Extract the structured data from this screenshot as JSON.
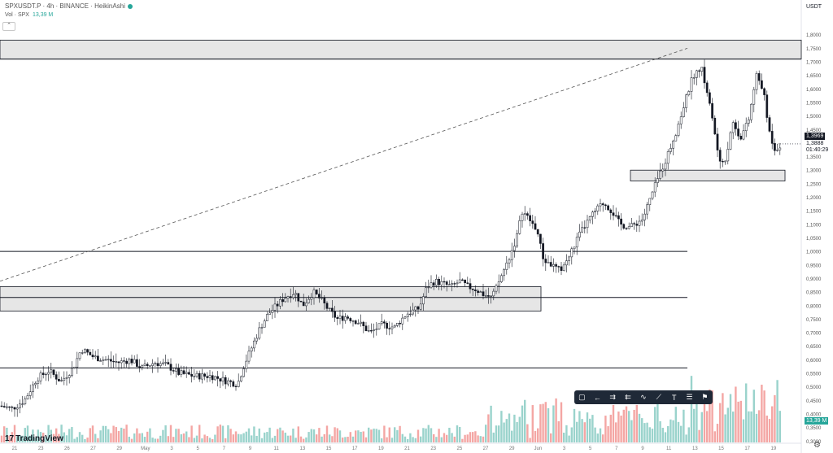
{
  "header": {
    "symbol_line": "SPXUSDT.P · 4h · BINANCE · HeikinAshi",
    "volume_label": "Vol · SPX",
    "volume_value": "13,39 M"
  },
  "axis_title": "USDT",
  "price_tags": {
    "current_price": "1,3969",
    "last_price": "1,3888",
    "countdown": "01:40:29",
    "volume_tag": "13,39 M"
  },
  "brand": "TradingView",
  "colors": {
    "up": "#26a69a",
    "down": "#ef5350",
    "vol_up": "#9ad3cc",
    "vol_down": "#f4a6a4",
    "zone": "#e6e6e6"
  },
  "toolbar": {
    "icons": [
      "rectangle-icon",
      "arrow-left-icon",
      "long-position-icon",
      "short-position-icon",
      "path-icon",
      "trend-line-icon",
      "text-icon",
      "list-icon",
      "flag-icon"
    ]
  },
  "chart_data": {
    "type": "candlestick",
    "y_ticks": [
      "1,8000",
      "1,7500",
      "1,7000",
      "1,6500",
      "1,6000",
      "1,5500",
      "1,5000",
      "1,4500",
      "1,4000",
      "1,3500",
      "1,3000",
      "1,2500",
      "1,2000",
      "1,1500",
      "1,1000",
      "1,0500",
      "1,0000",
      "0,9500",
      "0,9000",
      "0,8500",
      "0,8000",
      "0,7500",
      "0,7000",
      "0,6500",
      "0,6000",
      "0,5500",
      "0,5000",
      "0,4500",
      "0,4000",
      "0,3500",
      "0,3000"
    ],
    "y_range": [
      0.295,
      1.82
    ],
    "x_ticks": [
      "21",
      "23",
      "26",
      "27",
      "29",
      "May",
      "3",
      "5",
      "7",
      "9",
      "11",
      "13",
      "15",
      "17",
      "19",
      "21",
      "23",
      "25",
      "27",
      "29",
      "Jun",
      "3",
      "5",
      "7",
      "9",
      "11",
      "13",
      "15",
      "17",
      "19"
    ],
    "close_path": [
      [
        0,
        0.43
      ],
      [
        15,
        0.42
      ],
      [
        30,
        0.45
      ],
      [
        45,
        0.53
      ],
      [
        60,
        0.56
      ],
      [
        75,
        0.52
      ],
      [
        90,
        0.57
      ],
      [
        100,
        0.64
      ],
      [
        115,
        0.61
      ],
      [
        130,
        0.6
      ],
      [
        145,
        0.59
      ],
      [
        160,
        0.6
      ],
      [
        175,
        0.57
      ],
      [
        190,
        0.59
      ],
      [
        205,
        0.58
      ],
      [
        220,
        0.55
      ],
      [
        240,
        0.54
      ],
      [
        260,
        0.54
      ],
      [
        280,
        0.52
      ],
      [
        292,
        0.51
      ],
      [
        300,
        0.58
      ],
      [
        310,
        0.65
      ],
      [
        320,
        0.72
      ],
      [
        330,
        0.77
      ],
      [
        340,
        0.8
      ],
      [
        350,
        0.83
      ],
      [
        362,
        0.85
      ],
      [
        372,
        0.8
      ],
      [
        385,
        0.85
      ],
      [
        395,
        0.82
      ],
      [
        405,
        0.78
      ],
      [
        415,
        0.75
      ],
      [
        425,
        0.76
      ],
      [
        440,
        0.74
      ],
      [
        455,
        0.7
      ],
      [
        470,
        0.73
      ],
      [
        485,
        0.72
      ],
      [
        500,
        0.77
      ],
      [
        515,
        0.79
      ],
      [
        525,
        0.87
      ],
      [
        535,
        0.89
      ],
      [
        545,
        0.88
      ],
      [
        555,
        0.87
      ],
      [
        565,
        0.89
      ],
      [
        575,
        0.87
      ],
      [
        585,
        0.86
      ],
      [
        595,
        0.84
      ],
      [
        605,
        0.83
      ],
      [
        615,
        0.9
      ],
      [
        625,
        0.97
      ],
      [
        635,
        1.05
      ],
      [
        642,
        1.15
      ],
      [
        650,
        1.12
      ],
      [
        660,
        1.08
      ],
      [
        668,
        0.97
      ],
      [
        678,
        0.95
      ],
      [
        688,
        0.93
      ],
      [
        698,
        0.97
      ],
      [
        710,
        1.05
      ],
      [
        720,
        1.1
      ],
      [
        732,
        1.15
      ],
      [
        742,
        1.18
      ],
      [
        752,
        1.15
      ],
      [
        762,
        1.1
      ],
      [
        775,
        1.09
      ],
      [
        790,
        1.12
      ],
      [
        800,
        1.2
      ],
      [
        810,
        1.28
      ],
      [
        820,
        1.35
      ],
      [
        832,
        1.45
      ],
      [
        842,
        1.55
      ],
      [
        852,
        1.65
      ],
      [
        862,
        1.68
      ],
      [
        870,
        1.58
      ],
      [
        878,
        1.45
      ],
      [
        885,
        1.32
      ],
      [
        893,
        1.35
      ],
      [
        900,
        1.48
      ],
      [
        910,
        1.42
      ],
      [
        920,
        1.48
      ],
      [
        930,
        1.65
      ],
      [
        938,
        1.6
      ],
      [
        945,
        1.45
      ],
      [
        952,
        1.38
      ],
      [
        958,
        1.39
      ]
    ],
    "zones": [
      {
        "from": 1.71,
        "to": 1.78,
        "x_end": "edge"
      },
      {
        "from": 0.78,
        "to": 0.87,
        "x_end": 665
      },
      {
        "from": 1.26,
        "to": 1.3,
        "x_start": 775,
        "x_end": 965
      }
    ],
    "horizontal_lines": [
      1.71,
      0.83,
      1.0,
      0.57
    ],
    "trendline": {
      "from": [
        0,
        0.89
      ],
      "to": [
        845,
        1.75
      ]
    }
  }
}
